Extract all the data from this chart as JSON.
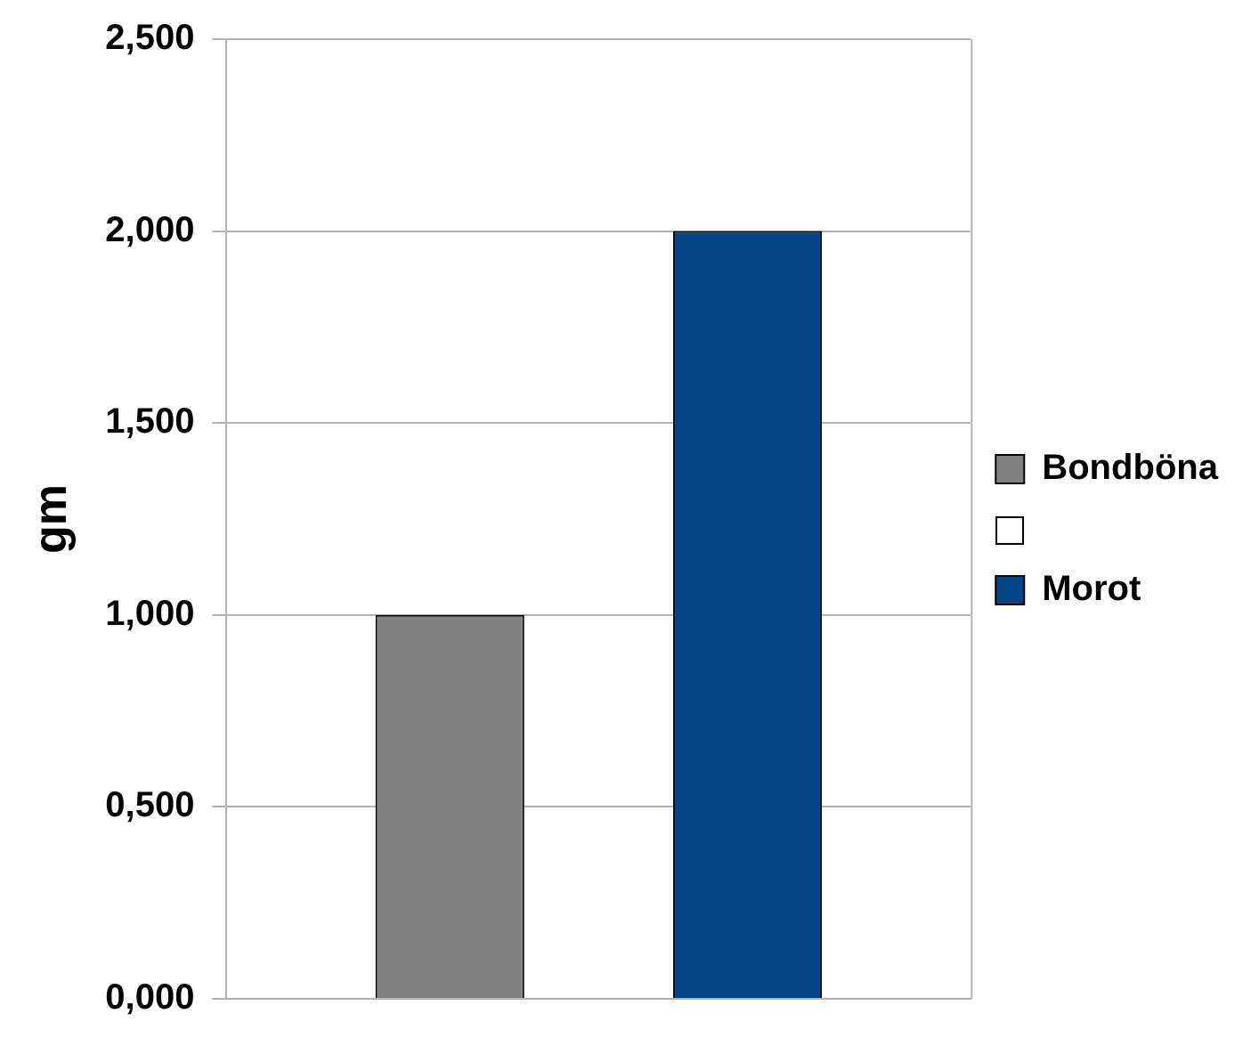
{
  "chart_data": {
    "type": "bar",
    "ylabel": "gm",
    "categories": [
      null
    ],
    "series": [
      {
        "name": "Bondböna",
        "color": "#808080",
        "values": [
          1.0
        ]
      },
      {
        "color": "#ffffff",
        "values": [
          null
        ]
      },
      {
        "name": "Morot",
        "color": "#004586",
        "values": [
          2.0
        ]
      }
    ],
    "ylim": [
      0,
      2.5
    ],
    "yticks": [
      {
        "value": 0,
        "label": "0,000"
      },
      {
        "value": 0.5,
        "label": "0,500"
      },
      {
        "value": 1,
        "label": "1,000"
      },
      {
        "value": 1.5,
        "label": "1,500"
      },
      {
        "value": 2,
        "label": "2,000"
      },
      {
        "value": 2.5,
        "label": "2,500"
      }
    ],
    "grid": "y",
    "legend": "right"
  }
}
